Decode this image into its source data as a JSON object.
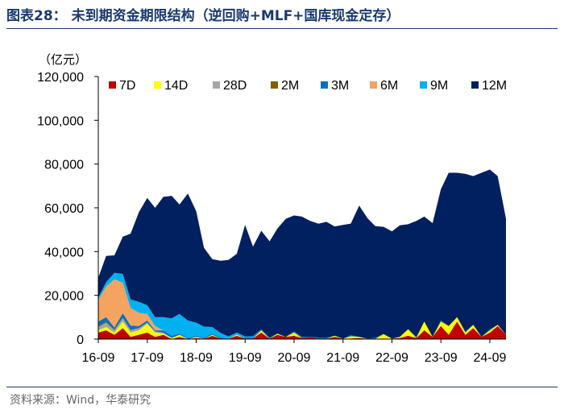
{
  "figure": {
    "title": "图表28：  未到期资金期限结构（逆回购+MLF+国库现金定存）",
    "source": "资料来源：Wind，华泰研究"
  },
  "chart_data": {
    "type": "area",
    "stacked": true,
    "title": "未到期资金期限结构（逆回购+MLF+国库现金定存）",
    "ylabel": "（亿元）",
    "xlabel": "",
    "ylim": [
      0,
      120000
    ],
    "yticks": [
      0,
      20000,
      40000,
      60000,
      80000,
      100000,
      120000
    ],
    "ytick_labels": [
      "0",
      "20,000",
      "40,000",
      "60,000",
      "80,000",
      "100,000",
      "120,000"
    ],
    "xlim": [
      2016.67,
      2025.0
    ],
    "xticks": [
      2016.67,
      2017.67,
      2018.67,
      2019.67,
      2020.67,
      2021.67,
      2022.67,
      2023.67,
      2024.67
    ],
    "xtick_labels": [
      "16-09",
      "17-09",
      "18-09",
      "19-09",
      "20-09",
      "21-09",
      "22-09",
      "23-09",
      "24-09"
    ],
    "legend_position": "top",
    "grid": false,
    "x": [
      2016.67,
      2016.83,
      2017.0,
      2017.17,
      2017.33,
      2017.5,
      2017.67,
      2017.83,
      2018.0,
      2018.17,
      2018.33,
      2018.5,
      2018.67,
      2018.83,
      2019.0,
      2019.17,
      2019.33,
      2019.5,
      2019.67,
      2019.83,
      2020.0,
      2020.17,
      2020.33,
      2020.5,
      2020.67,
      2020.83,
      2021.0,
      2021.17,
      2021.33,
      2021.5,
      2021.67,
      2021.83,
      2022.0,
      2022.17,
      2022.33,
      2022.5,
      2022.67,
      2022.83,
      2023.0,
      2023.17,
      2023.33,
      2023.5,
      2023.67,
      2023.83,
      2024.0,
      2024.17,
      2024.33,
      2024.5,
      2024.67,
      2024.83,
      2025.0
    ],
    "series": [
      {
        "name": "7D",
        "color": "#c00000",
        "values": [
          3000,
          4000,
          2000,
          5000,
          1000,
          2000,
          3000,
          1000,
          2000,
          0,
          1000,
          0,
          500,
          200,
          1500,
          300,
          200,
          1500,
          200,
          300,
          3000,
          200,
          2000,
          1000,
          1500,
          500,
          1000,
          200,
          100,
          1000,
          200,
          300,
          500,
          200,
          100,
          300,
          200,
          500,
          1500,
          500,
          4000,
          1000,
          6000,
          2000,
          8000,
          2000,
          5000,
          1000,
          3000,
          6000,
          2000
        ]
      },
      {
        "name": "14D",
        "color": "#ffff00",
        "values": [
          1000,
          1500,
          1000,
          3000,
          2000,
          2000,
          4000,
          2000,
          500,
          500,
          1000,
          0,
          500,
          0,
          500,
          0,
          0,
          500,
          0,
          0,
          1000,
          0,
          500,
          0,
          1500,
          0,
          0,
          0,
          0,
          500,
          0,
          1000,
          500,
          0,
          0,
          2000,
          0,
          500,
          3000,
          0,
          4000,
          0,
          2000,
          4000,
          2000,
          1000,
          1500,
          0,
          1000,
          500,
          0
        ]
      },
      {
        "name": "28D",
        "color": "#a6a6a6",
        "values": [
          1500,
          2000,
          1000,
          1500,
          1000,
          1000,
          500,
          500,
          500,
          0,
          0,
          0,
          0,
          0,
          0,
          0,
          0,
          0,
          0,
          0,
          0,
          0,
          0,
          0,
          0,
          0,
          0,
          0,
          0,
          0,
          0,
          0,
          0,
          0,
          0,
          0,
          0,
          0,
          0,
          0,
          0,
          0,
          0,
          0,
          0,
          0,
          0,
          0,
          0,
          0,
          0
        ]
      },
      {
        "name": "2M",
        "color": "#7f6000",
        "values": [
          500,
          500,
          300,
          300,
          200,
          0,
          0,
          0,
          0,
          0,
          0,
          0,
          0,
          0,
          0,
          0,
          0,
          0,
          0,
          0,
          0,
          0,
          0,
          0,
          0,
          0,
          0,
          0,
          0,
          0,
          0,
          0,
          0,
          0,
          0,
          0,
          0,
          0,
          0,
          0,
          0,
          0,
          0,
          0,
          0,
          0,
          0,
          0,
          0,
          0,
          0
        ]
      },
      {
        "name": "3M",
        "color": "#0070c0",
        "values": [
          2000,
          2000,
          1000,
          2000,
          2000,
          1000,
          1000,
          500,
          1000,
          1000,
          500,
          500,
          500,
          500,
          500,
          500,
          0,
          0,
          500,
          500,
          500,
          500,
          0,
          0,
          500,
          500,
          0,
          500,
          500,
          0,
          0,
          500,
          0,
          0,
          500,
          0,
          0,
          0,
          0,
          500,
          0,
          0,
          500,
          0,
          0,
          500,
          0,
          0,
          500,
          0,
          0
        ]
      },
      {
        "name": "6M",
        "color": "#f4a460",
        "values": [
          10000,
          14000,
          22000,
          14000,
          8000,
          6000,
          3000,
          2000,
          0,
          0,
          0,
          0,
          0,
          0,
          0,
          0,
          0,
          0,
          0,
          0,
          0,
          0,
          0,
          0,
          0,
          0,
          0,
          0,
          0,
          0,
          0,
          0,
          0,
          0,
          0,
          0,
          0,
          0,
          0,
          0,
          0,
          0,
          0,
          0,
          0,
          0,
          0,
          0,
          0,
          0,
          0
        ]
      },
      {
        "name": "9M",
        "color": "#00b0f0",
        "values": [
          1000,
          2000,
          3000,
          4000,
          4000,
          5000,
          4000,
          4000,
          6000,
          8000,
          9000,
          8000,
          6000,
          5000,
          3000,
          2000,
          1000,
          1000,
          500,
          500,
          0,
          0,
          0,
          0,
          0,
          0,
          0,
          0,
          0,
          0,
          0,
          0,
          0,
          0,
          0,
          0,
          0,
          0,
          0,
          0,
          0,
          0,
          0,
          0,
          0,
          0,
          0,
          0,
          0,
          0,
          0
        ]
      },
      {
        "name": "12M",
        "color": "#002060",
        "values": [
          9000,
          12000,
          8000,
          17000,
          30000,
          41000,
          49000,
          50000,
          55000,
          56000,
          50000,
          58000,
          51000,
          36000,
          31000,
          33000,
          35000,
          36000,
          51000,
          41000,
          45000,
          44000,
          48000,
          54000,
          53000,
          55000,
          53000,
          52000,
          53000,
          50000,
          52000,
          51000,
          60000,
          55000,
          51000,
          49000,
          49000,
          51000,
          48000,
          53000,
          48000,
          52000,
          60000,
          70000,
          66000,
          72000,
          68000,
          75000,
          73000,
          68000,
          53000
        ]
      }
    ]
  }
}
